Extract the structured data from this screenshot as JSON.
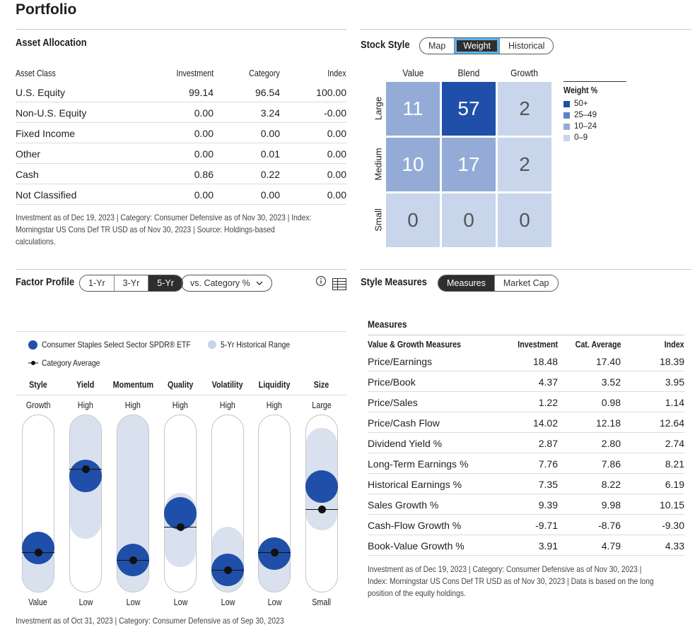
{
  "page_title": "Portfolio",
  "asset_allocation": {
    "title": "Asset Allocation",
    "headers": [
      "Asset Class",
      "Investment",
      "Category",
      "Index"
    ],
    "rows": [
      [
        "U.S. Equity",
        "99.14",
        "96.54",
        "100.00"
      ],
      [
        "Non-U.S. Equity",
        "0.00",
        "3.24",
        "-0.00"
      ],
      [
        "Fixed Income",
        "0.00",
        "0.00",
        "0.00"
      ],
      [
        "Other",
        "0.00",
        "0.01",
        "0.00"
      ],
      [
        "Cash",
        "0.86",
        "0.22",
        "0.00"
      ],
      [
        "Not Classified",
        "0.00",
        "0.00",
        "0.00"
      ]
    ],
    "note_lines": [
      "Investment as of Dec 19, 2023 | Category: Consumer Defensive as of Nov 30, 2023 | Index:",
      "Morningstar US Cons Def TR USD as of Nov 30, 2023 | Source: Holdings-based",
      "calculations."
    ]
  },
  "stock_style": {
    "title": "Stock Style",
    "toggle": [
      "Map",
      "Weight",
      "Historical"
    ],
    "active": "Weight",
    "columns": [
      "Value",
      "Blend",
      "Growth"
    ],
    "rows": [
      "Large",
      "Medium",
      "Small"
    ],
    "cells": [
      [
        "11",
        "57",
        "2"
      ],
      [
        "10",
        "17",
        "2"
      ],
      [
        "0",
        "0",
        "0"
      ]
    ],
    "legend_title": "Weight %",
    "legend": [
      {
        "label": "50+",
        "color": "#1f4fa8"
      },
      {
        "label": "25–49",
        "color": "#5b82c6"
      },
      {
        "label": "10–24",
        "color": "#93abd6"
      },
      {
        "label": "0–9",
        "color": "#c8d5ea"
      }
    ],
    "cell_colors": [
      [
        "#93abd6",
        "#1f4fa8",
        "#c8d5ea"
      ],
      [
        "#93abd6",
        "#93abd6",
        "#c8d5ea"
      ],
      [
        "#c8d5ea",
        "#c8d5ea",
        "#c8d5ea"
      ]
    ],
    "cell_text_colors": [
      [
        "#ffffff",
        "#ffffff",
        "#555555"
      ],
      [
        "#ffffff",
        "#ffffff",
        "#555555"
      ],
      [
        "#555555",
        "#555555",
        "#555555"
      ]
    ]
  },
  "factor_profile": {
    "title": "Factor Profile",
    "periods": [
      "1-Yr",
      "3-Yr",
      "5-Yr"
    ],
    "active_period": "5-Yr",
    "dropdown_label": "vs. Category %",
    "legend_fund": "Consumer Staples Select Sector SPDR® ETF",
    "legend_range": "5-Yr Historical Range",
    "legend_category": "Category Average",
    "factors": [
      {
        "name": "Style",
        "top": "Growth",
        "bottom": "Value",
        "fund": 0.19,
        "cat": 0.16,
        "range": [
          0.0,
          0.27
        ]
      },
      {
        "name": "Yield",
        "top": "High",
        "bottom": "Low",
        "fund": 0.69,
        "cat": 0.74,
        "range": [
          0.3,
          1.0
        ]
      },
      {
        "name": "Momentum",
        "top": "High",
        "bottom": "Low",
        "fund": 0.11,
        "cat": 0.11,
        "range": [
          0.0,
          1.0
        ]
      },
      {
        "name": "Quality",
        "top": "High",
        "bottom": "Low",
        "fund": 0.43,
        "cat": 0.34,
        "range": [
          0.14,
          0.56
        ]
      },
      {
        "name": "Volatility",
        "top": "High",
        "bottom": "Low",
        "fund": 0.04,
        "cat": 0.04,
        "range": [
          0.0,
          0.37
        ]
      },
      {
        "name": "Liquidity",
        "top": "High",
        "bottom": "Low",
        "fund": 0.15,
        "cat": 0.16,
        "range": [
          0.0,
          0.3
        ]
      },
      {
        "name": "Size",
        "top": "Large",
        "bottom": "Small",
        "fund": 0.62,
        "cat": 0.46,
        "range": [
          0.35,
          0.93
        ]
      }
    ],
    "note": "Investment as of Oct 31, 2023 | Category: Consumer Defensive as of Sep 30, 2023"
  },
  "style_measures": {
    "title": "Style Measures",
    "toggle": [
      "Measures",
      "Market Cap"
    ],
    "active": "Measures",
    "subtitle": "Measures",
    "headers": [
      "Value & Growth Measures",
      "Investment",
      "Cat. Average",
      "Index"
    ],
    "rows": [
      [
        "Price/Earnings",
        "18.48",
        "17.40",
        "18.39"
      ],
      [
        "Price/Book",
        "4.37",
        "3.52",
        "3.95"
      ],
      [
        "Price/Sales",
        "1.22",
        "0.98",
        "1.14"
      ],
      [
        "Price/Cash Flow",
        "14.02",
        "12.18",
        "12.64"
      ],
      [
        "Dividend Yield %",
        "2.87",
        "2.80",
        "2.74"
      ],
      [
        "Long-Term Earnings %",
        "7.76",
        "7.86",
        "8.21"
      ],
      [
        "Historical Earnings %",
        "7.35",
        "8.22",
        "6.19"
      ],
      [
        "Sales Growth %",
        "9.39",
        "9.98",
        "10.15"
      ],
      [
        "Cash-Flow Growth %",
        "-9.71",
        "-8.76",
        "-9.30"
      ],
      [
        "Book-Value Growth %",
        "3.91",
        "4.79",
        "4.33"
      ]
    ],
    "note_lines": [
      "Investment as of Dec 19, 2023 | Category: Consumer Defensive as of Nov 30, 2023 |",
      "Index: Morningstar US Cons Def TR USD as of Nov 30, 2023 | Data is based on the long",
      "position of the equity holdings."
    ]
  },
  "icons": {
    "info": "info-icon",
    "table": "table-view-icon",
    "chevron": "chevron-down-icon"
  }
}
